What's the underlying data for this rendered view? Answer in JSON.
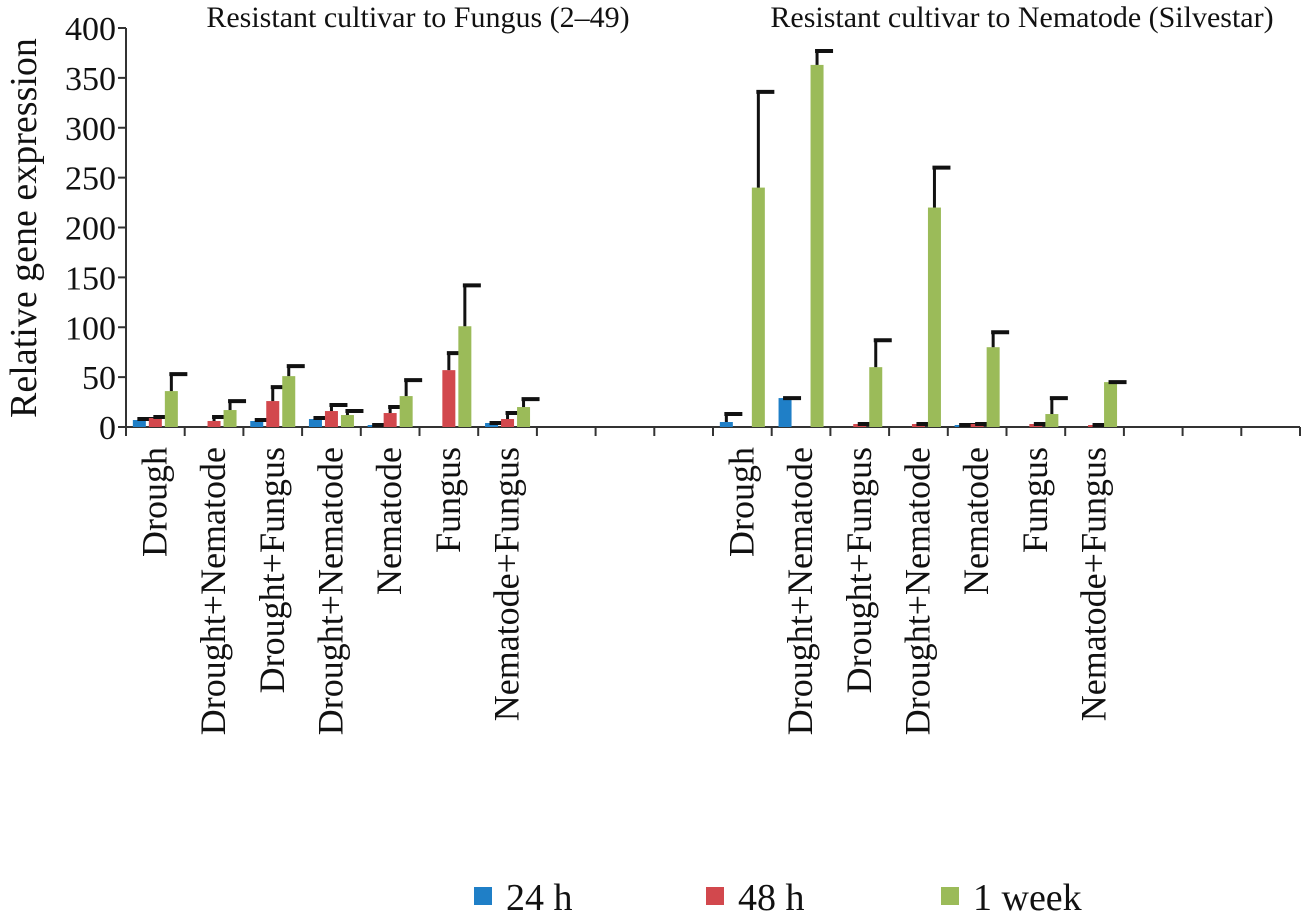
{
  "chart_data": {
    "type": "bar",
    "ylabel": "Relative gene expression",
    "ylim": [
      0,
      400
    ],
    "yticks": [
      "0",
      "50",
      "100",
      "150",
      "200",
      "250",
      "300",
      "350",
      "400"
    ],
    "groups": [
      {
        "title": "Resistant cultivar to Fungus  (2–49)",
        "categories": [
          "Drough",
          "Drought+Nematode",
          "Drought+Fungus",
          "Drought+Nematode",
          "Nematode",
          "Fungus",
          "Nematode+Fungus"
        ],
        "series": [
          {
            "name": "24 h",
            "values": [
              7,
              0,
              6,
              8,
              2,
              0,
              4
            ],
            "errors": [
              1,
              0,
              1,
              1,
              0,
              0,
              0
            ]
          },
          {
            "name": "48 h",
            "values": [
              9,
              6,
              26,
              16,
              14,
              57,
              8
            ],
            "errors": [
              1,
              4,
              14,
              6,
              6,
              17,
              6
            ]
          },
          {
            "name": "1 week",
            "values": [
              36,
              17,
              51,
              12,
              31,
              101,
              20
            ],
            "errors": [
              17,
              9,
              10,
              4,
              16,
              41,
              8
            ]
          }
        ]
      },
      {
        "title": "Resistant cultivar to Nematode (Silvestar)",
        "categories": [
          "Drough",
          "Drought+Nematode",
          "Drought+Fungus",
          "Drought+Nematode",
          "Nematode",
          "Fungus",
          "Nematode+Fungus"
        ],
        "series": [
          {
            "name": "24 h",
            "values": [
              5,
              29,
              0,
              0,
              2,
              0,
              0
            ],
            "errors": [
              8,
              0,
              0,
              0,
              0,
              0,
              0
            ]
          },
          {
            "name": "48 h",
            "values": [
              0,
              0,
              3,
              3,
              3,
              3,
              2
            ],
            "errors": [
              0,
              0,
              0,
              0,
              0,
              0,
              0
            ]
          },
          {
            "name": "1 week",
            "values": [
              240,
              363,
              60,
              220,
              80,
              13,
              45
            ],
            "errors": [
              96,
              14,
              27,
              40,
              15,
              16,
              0
            ]
          }
        ]
      }
    ],
    "colors": {
      "24 h": "#1f7fc7",
      "48 h": "#d2484d",
      "1 week": "#9bbb59"
    },
    "legend": [
      "24 h",
      "48 h",
      "1 week"
    ],
    "legend_position": "bottom",
    "grid": false
  }
}
